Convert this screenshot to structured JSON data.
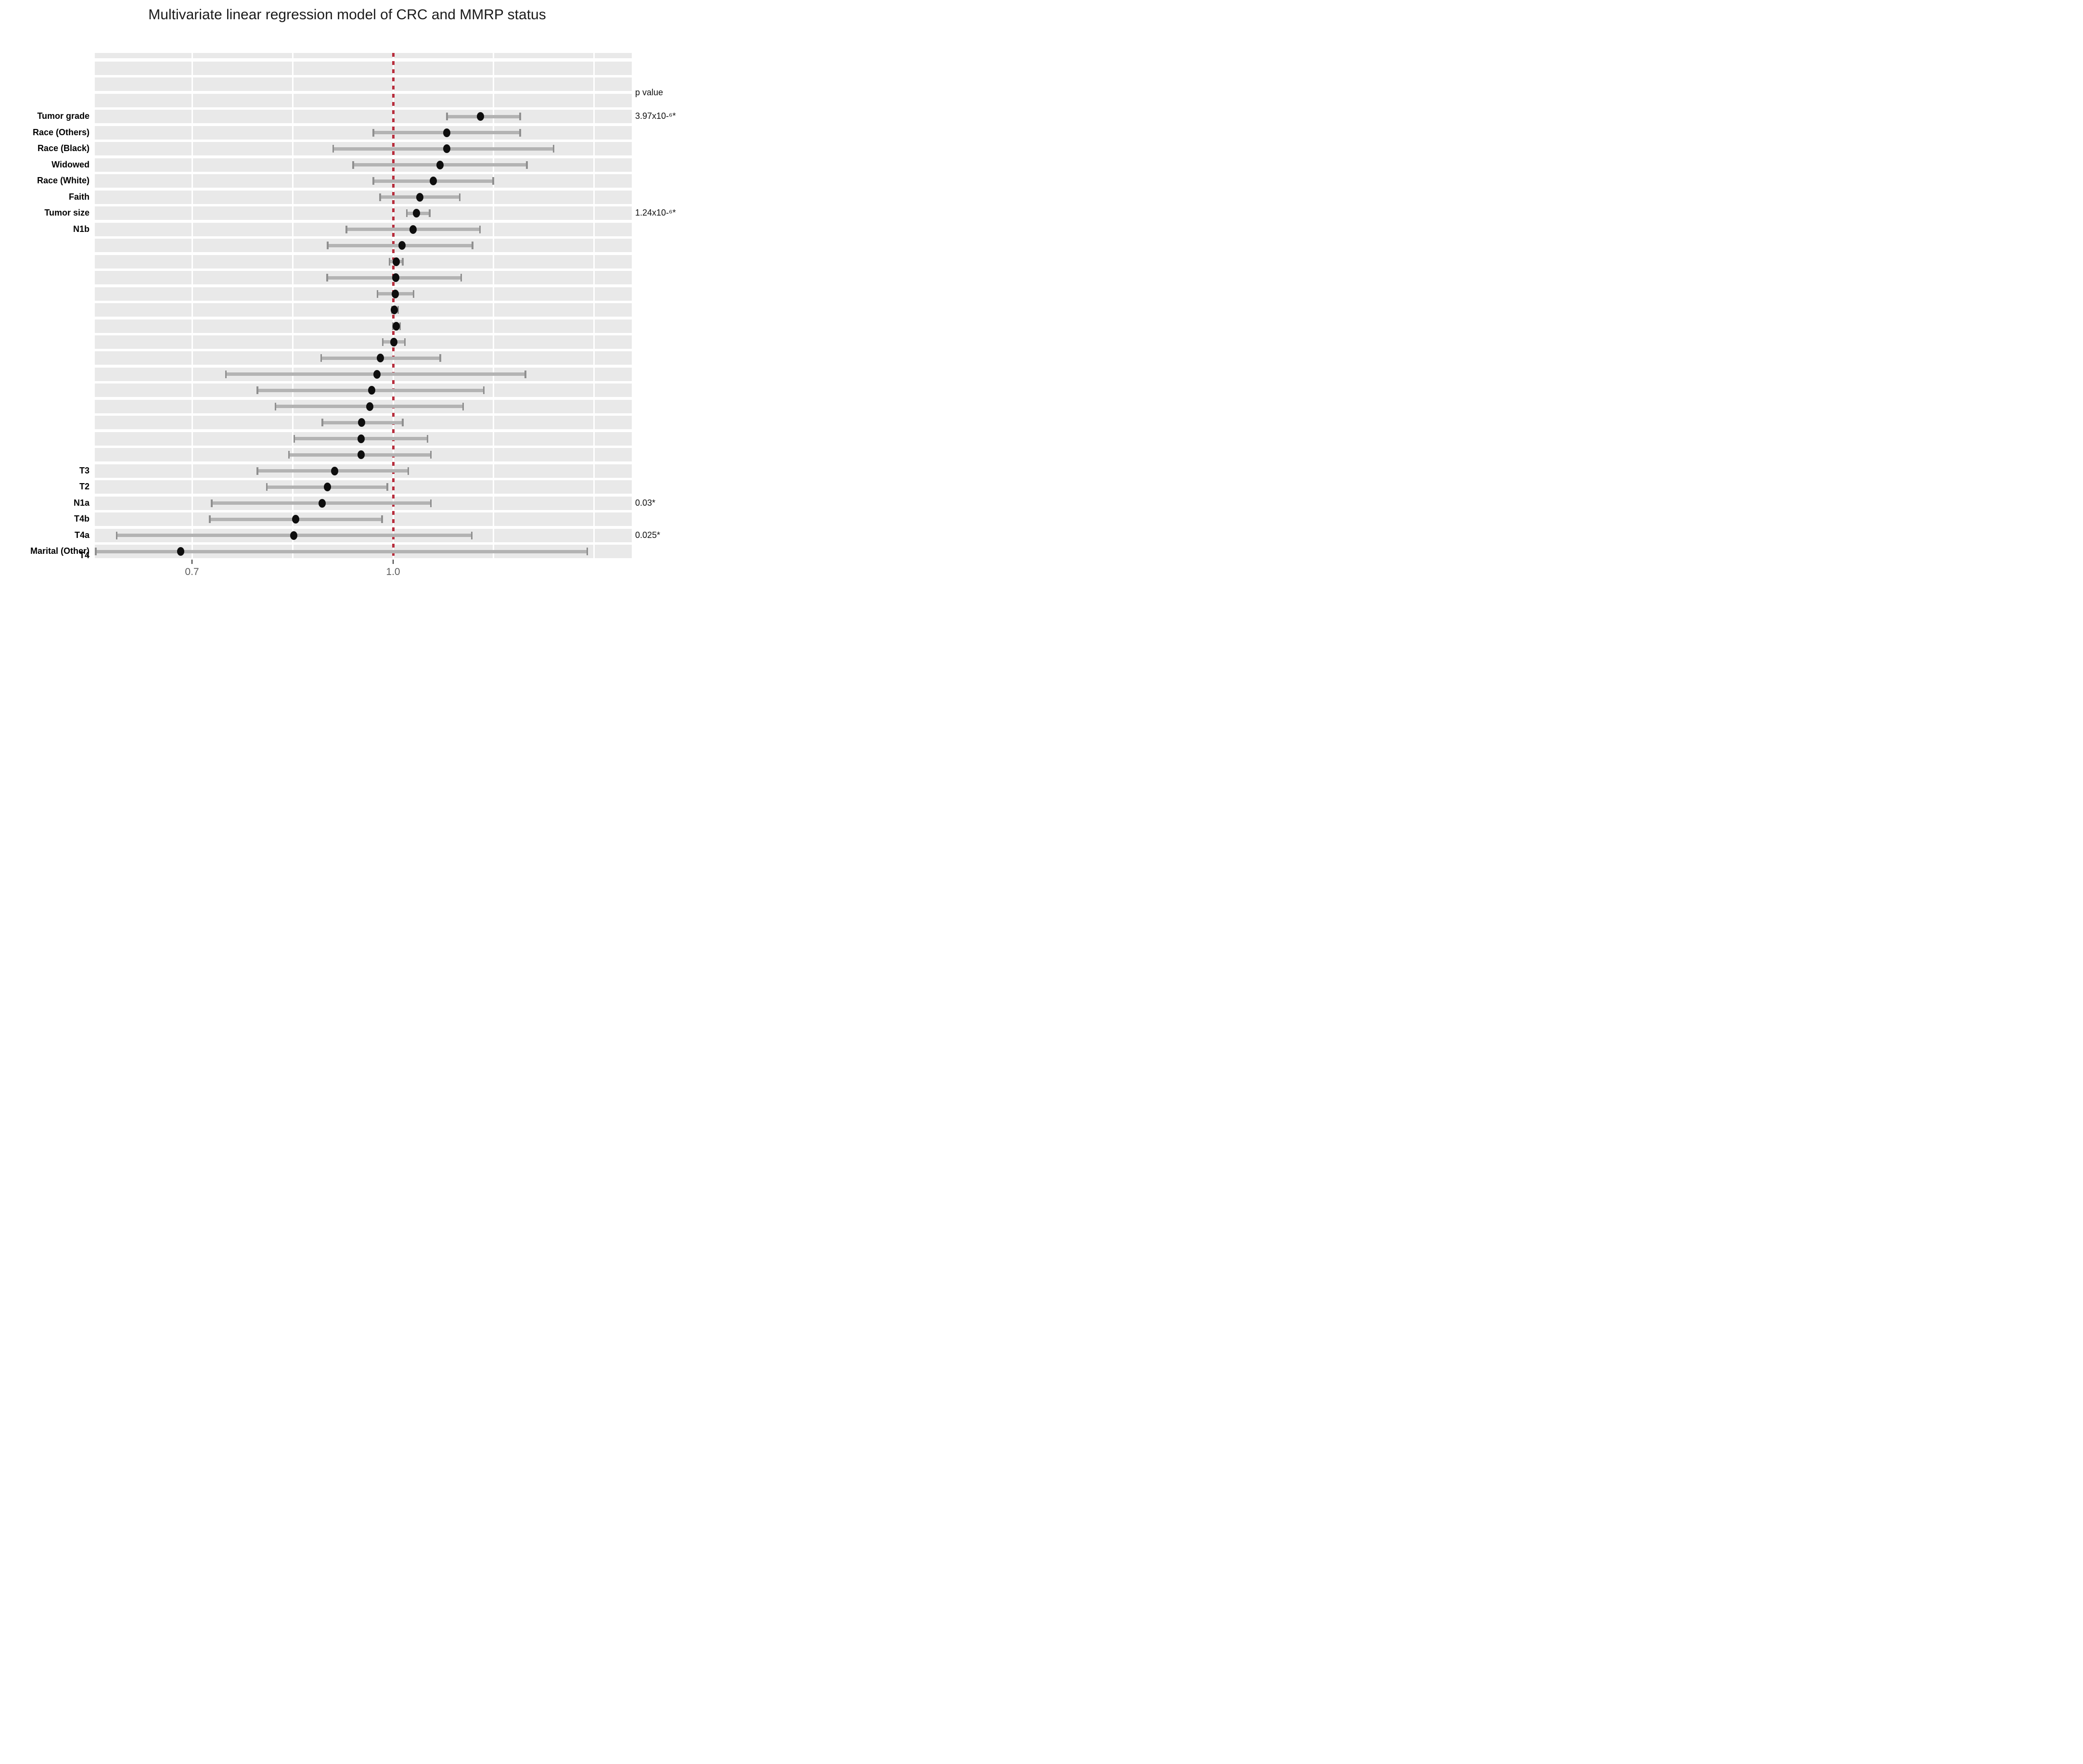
{
  "chart_data": {
    "type": "scatter",
    "variant": "forest-plot",
    "title": "Multivariate linear regression model of CRC and MMRP status",
    "p_value_header": "p value",
    "xlabel": "",
    "ylabel": "",
    "xlim": [
      0.555,
      1.356
    ],
    "x_ticks": [
      {
        "value": 0.7,
        "label": "0.7"
      },
      {
        "value": 1.0,
        "label": "1.0"
      }
    ],
    "gridline_values": [
      0.7,
      0.85,
      1.0,
      1.15,
      1.3
    ],
    "reference_line": {
      "value": 1.0,
      "style": "dashed",
      "color": "#b72e3d"
    },
    "legend": "none",
    "grid": "on",
    "rows": [
      {
        "label": "",
        "est": null,
        "lo": null,
        "hi": null
      },
      {
        "label": "",
        "est": null,
        "lo": null,
        "hi": null
      },
      {
        "label": "",
        "est": null,
        "lo": null,
        "hi": null
      },
      {
        "label": "Tumor grade",
        "est": 1.13,
        "lo": 1.08,
        "hi": 1.19,
        "p": "3.97x10-⁶*"
      },
      {
        "label": "Race (Others)",
        "est": 1.08,
        "lo": 0.97,
        "hi": 1.19
      },
      {
        "label": "Race (Black)",
        "est": 1.08,
        "lo": 0.91,
        "hi": 1.24
      },
      {
        "label": "Widowed",
        "est": 1.07,
        "lo": 0.94,
        "hi": 1.2
      },
      {
        "label": "Race (White)",
        "est": 1.06,
        "lo": 0.97,
        "hi": 1.15
      },
      {
        "label": "Faith",
        "est": 1.04,
        "lo": 0.98,
        "hi": 1.1
      },
      {
        "label": "Tumor size",
        "est": 1.035,
        "lo": 1.02,
        "hi": 1.055,
        "p": "1.24x10-⁶*"
      },
      {
        "label": "N1b",
        "est": 1.03,
        "lo": 0.93,
        "hi": 1.13
      },
      {
        "label": "",
        "est": 1.013,
        "lo": 0.902,
        "hi": 1.119
      },
      {
        "label": "",
        "est": 1.005,
        "lo": 0.994,
        "hi": 1.015
      },
      {
        "label": "",
        "est": 1.004,
        "lo": 0.901,
        "hi": 1.102
      },
      {
        "label": "",
        "est": 1.003,
        "lo": 0.976,
        "hi": 1.031
      },
      {
        "label": "",
        "est": 1.002,
        "lo": 0.998,
        "hi": 1.008
      },
      {
        "label": "",
        "est": 1.005,
        "lo": 0.999,
        "hi": 1.011
      },
      {
        "label": "",
        "est": 1.001,
        "lo": 0.984,
        "hi": 1.018
      },
      {
        "label": "",
        "est": 0.981,
        "lo": 0.892,
        "hi": 1.071
      },
      {
        "label": "",
        "est": 0.976,
        "lo": 0.75,
        "hi": 1.198
      },
      {
        "label": "",
        "est": 0.968,
        "lo": 0.797,
        "hi": 1.136
      },
      {
        "label": "",
        "est": 0.965,
        "lo": 0.824,
        "hi": 1.105
      },
      {
        "label": "",
        "est": 0.953,
        "lo": 0.894,
        "hi": 1.015
      },
      {
        "label": "",
        "est": 0.952,
        "lo": 0.852,
        "hi": 1.052
      },
      {
        "label": "",
        "est": 0.952,
        "lo": 0.844,
        "hi": 1.057
      },
      {
        "label": "T3",
        "est": 0.913,
        "lo": 0.797,
        "hi": 1.023
      },
      {
        "label": "T2",
        "est": 0.902,
        "lo": 0.811,
        "hi": 0.992
      },
      {
        "label": "N1a",
        "est": 0.894,
        "lo": 0.729,
        "hi": 1.057,
        "p": "0.03*"
      },
      {
        "label": "T4b",
        "est": 0.855,
        "lo": 0.726,
        "hi": 0.984
      },
      {
        "label": "T4a",
        "est": 0.852,
        "lo": 0.587,
        "hi": 1.118,
        "p": "0.025*"
      },
      {
        "label": "Marital (Other)",
        "est": 0.683,
        "lo": 0.556,
        "hi": 1.29
      },
      {
        "label": "T4",
        "est": null,
        "lo": null,
        "hi": null,
        "clipped": true
      }
    ]
  },
  "colors": {
    "stripe": "#e9e9e9",
    "gridline": "#ffffff",
    "reference_line": "#b72e3d",
    "ci_bar": "#b3b3b3",
    "ci_cap": "#8f8f8f",
    "point": "#0e0e0e",
    "tick": "#2f2f2f",
    "tick_label": "#5e5e5e",
    "row_label": "#000000",
    "p_value_text": "#111111",
    "title": "#1b1b1b"
  }
}
